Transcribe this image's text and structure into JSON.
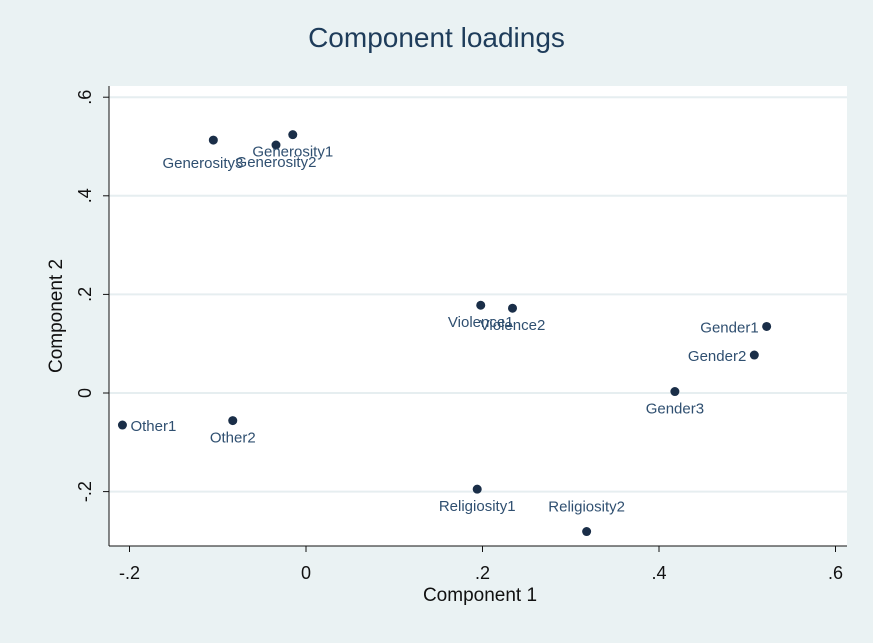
{
  "chart_data": {
    "type": "scatter",
    "title": "Component loadings",
    "xlabel": "Component 1",
    "ylabel": "Component 2",
    "xlim": [
      -0.2,
      0.6
    ],
    "ylim": [
      -0.3,
      0.6
    ],
    "xticks": [
      -0.2,
      0,
      0.2,
      0.4,
      0.6
    ],
    "xtick_labels": [
      "-.2",
      "0",
      ".2",
      ".4",
      ".6"
    ],
    "yticks": [
      -0.2,
      0,
      0.2,
      0.4,
      0.6
    ],
    "ytick_labels": [
      "-.2",
      "0",
      ".2",
      ".4",
      ".6"
    ],
    "grid": true,
    "legend": "none",
    "marker_color": "#1a2e48",
    "label_color": "#2f4f70",
    "background": "#eaf2f3",
    "points": [
      {
        "label": "Generosity3",
        "x": -0.105,
        "y": 0.513,
        "pos": "left"
      },
      {
        "label": "Generosity2",
        "x": -0.034,
        "y": 0.503,
        "pos": "below"
      },
      {
        "label": "Generosity1",
        "x": -0.015,
        "y": 0.524,
        "pos": "below"
      },
      {
        "label": "Violence1",
        "x": 0.198,
        "y": 0.178,
        "pos": "below"
      },
      {
        "label": "Violence2",
        "x": 0.234,
        "y": 0.172,
        "pos": "below"
      },
      {
        "label": "Gender1",
        "x": 0.522,
        "y": 0.135,
        "pos": "left"
      },
      {
        "label": "Gender2",
        "x": 0.508,
        "y": 0.077,
        "pos": "left"
      },
      {
        "label": "Gender3",
        "x": 0.418,
        "y": 0.003,
        "pos": "below"
      },
      {
        "label": "Other1",
        "x": -0.208,
        "y": -0.065,
        "pos": "right"
      },
      {
        "label": "Other2",
        "x": -0.083,
        "y": -0.056,
        "pos": "below"
      },
      {
        "label": "Religiosity1",
        "x": 0.194,
        "y": -0.195,
        "pos": "below"
      },
      {
        "label": "Religiosity2",
        "x": 0.318,
        "y": -0.281,
        "pos": "above"
      }
    ]
  }
}
